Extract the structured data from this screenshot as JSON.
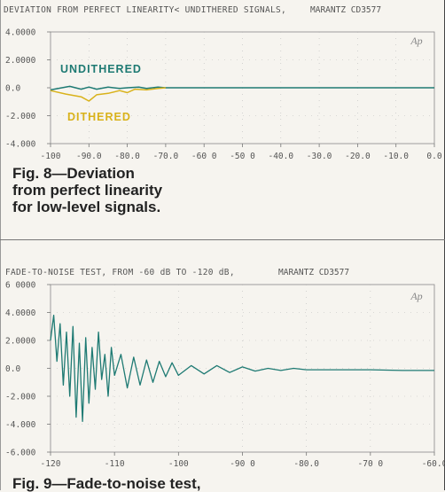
{
  "chart_data": [
    {
      "type": "line",
      "title": "DEVIATION FROM PERFECT LINEARITY< UNDITHERED SIGNALS,",
      "brand": "MARANTZ CD3577",
      "logo": "Ap",
      "xlim": [
        -100,
        0
      ],
      "ylim": [
        -4,
        4
      ],
      "x_ticks": [
        "-100",
        "-90.0",
        "-80.0",
        "-70.0",
        "-60 0",
        "-50 0",
        "-40.0",
        "-30.0",
        "-20.0",
        "-10.0",
        "0.0"
      ],
      "y_ticks": [
        "4.0000",
        "2.0000",
        "0.0",
        "-2.000",
        "-4.000"
      ],
      "series": [
        {
          "name": "UNDITHERED",
          "color": "#1e7a73",
          "x": [
            -100,
            -95,
            -92,
            -90,
            -88,
            -85,
            -82,
            -80,
            -77,
            -75,
            -72,
            -70,
            -65,
            -60,
            -50,
            -40,
            -30,
            -20,
            -10,
            0
          ],
          "y": [
            -0.15,
            0.1,
            -0.1,
            0.05,
            -0.1,
            0.05,
            -0.05,
            0.0,
            0.05,
            -0.05,
            0.05,
            0.0,
            0.0,
            0.0,
            0.0,
            0.0,
            0.0,
            0.0,
            0.0,
            0.0
          ]
        },
        {
          "name": "DITHERED",
          "color": "#d9b21a",
          "x": [
            -100,
            -96,
            -92,
            -90,
            -88,
            -85,
            -82,
            -80,
            -78,
            -75,
            -72,
            -70
          ],
          "y": [
            -0.2,
            -0.45,
            -0.65,
            -0.95,
            -0.5,
            -0.4,
            -0.2,
            -0.35,
            -0.1,
            -0.15,
            -0.05,
            0.0
          ]
        }
      ],
      "caption": "Fig. 8—Deviation from perfect linearity for low-level signals."
    },
    {
      "type": "line",
      "title": "FADE-TO-NOISE TEST, FROM -60 dB TO -120 dB,",
      "brand": "MARANTZ CD3577",
      "logo": "Ap",
      "xlim": [
        -120,
        -60
      ],
      "ylim": [
        -6,
        6
      ],
      "x_ticks": [
        "-120",
        "-110",
        "-100",
        "-90 0",
        "-80.0",
        "-70 0",
        "-60.0"
      ],
      "y_ticks": [
        "6 0000",
        "4.0000",
        "2.0000",
        "0.0",
        "-2.000",
        "-4.000",
        "-6.000"
      ],
      "series": [
        {
          "color": "#1e7a73",
          "x": [
            -120,
            -119.5,
            -119,
            -118.5,
            -118,
            -117.5,
            -117,
            -116.5,
            -116,
            -115.5,
            -115,
            -114.5,
            -114,
            -113.5,
            -113,
            -112.5,
            -112,
            -111.5,
            -111,
            -110.5,
            -110,
            -109,
            -108,
            -107,
            -106,
            -105,
            -104,
            -103,
            -102,
            -101,
            -100,
            -98,
            -96,
            -94,
            -92,
            -90,
            -88,
            -86,
            -84,
            -82,
            -80,
            -75,
            -70,
            -65,
            -60
          ],
          "y": [
            2.0,
            3.8,
            0.5,
            3.2,
            -1.2,
            2.6,
            -2.0,
            3.0,
            -3.5,
            1.8,
            -3.8,
            2.2,
            -2.5,
            1.5,
            -1.5,
            2.6,
            -0.8,
            1.0,
            -2.0,
            1.5,
            -0.5,
            1.0,
            -1.4,
            0.8,
            -1.2,
            0.6,
            -1.0,
            0.5,
            -0.6,
            0.4,
            -0.5,
            0.2,
            -0.4,
            0.2,
            -0.3,
            0.1,
            -0.2,
            0.0,
            -0.15,
            0.0,
            -0.1,
            -0.1,
            -0.1,
            -0.15,
            -0.15
          ]
        }
      ],
      "caption": "Fig. 9—Fade-to-noise test,"
    }
  ]
}
